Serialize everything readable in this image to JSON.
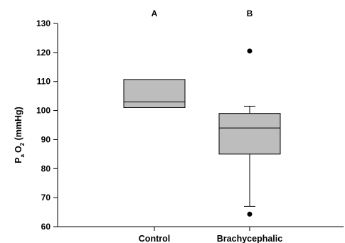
{
  "chart_data": {
    "type": "box",
    "ylabel": {
      "main": "P",
      "sub": "a",
      "main2": "O",
      "sub2": "2",
      "unit": " (mmHg)"
    },
    "ylim": [
      60,
      130
    ],
    "yticks": [
      60,
      70,
      80,
      90,
      100,
      110,
      120,
      130
    ],
    "categories": [
      "Control",
      "Brachycephalic"
    ],
    "annotations": [
      "A",
      "B"
    ],
    "boxes": [
      {
        "category": "Control",
        "q1": 101,
        "median": 103,
        "q3": 110.7,
        "whisker_low": null,
        "whisker_high": null,
        "outliers": []
      },
      {
        "category": "Brachycephalic",
        "q1": 85,
        "median": 94,
        "q3": 99,
        "whisker_low": 67,
        "whisker_high": 101.5,
        "outliers": [
          120.5,
          64.3
        ]
      }
    ],
    "box_fill": "#bdbdbd",
    "grid": false
  }
}
